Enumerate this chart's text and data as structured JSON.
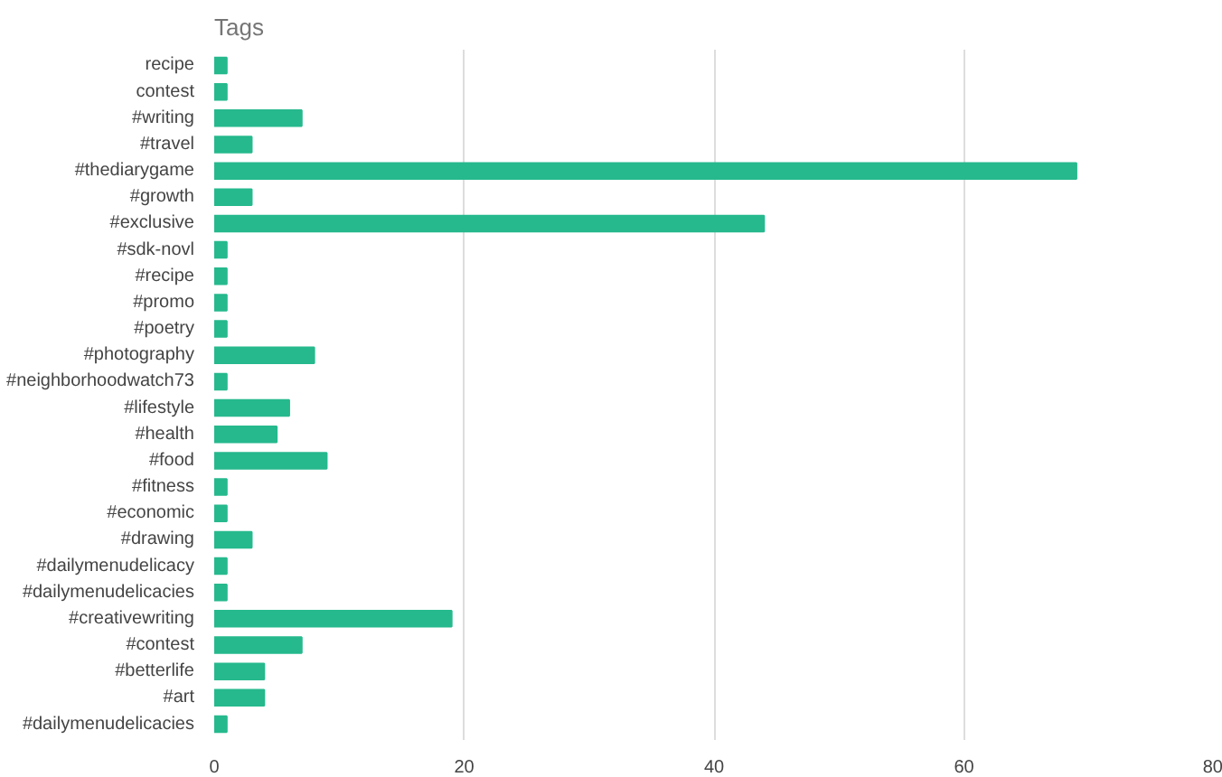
{
  "chart_data": {
    "type": "bar",
    "title": "Tags",
    "orientation": "horizontal",
    "categories": [
      "recipe",
      "contest",
      "#writing",
      "#travel",
      "#thediarygame",
      "#growth",
      "#exclusive",
      "#sdk-novl",
      "#recipe",
      "#promo",
      "#poetry",
      "#photography",
      "#neighborhoodwatch73",
      "#lifestyle",
      "#health",
      "#food",
      "#fitness",
      "#economic",
      "#drawing",
      "#dailymenudelicacy",
      "#dailymenudelicacies",
      "#creativewriting",
      "#contest",
      "#betterlife",
      "#art",
      "#dailymenudelicacies"
    ],
    "series": [
      {
        "color": "#26b98d",
        "values": [
          1,
          1,
          7,
          3,
          69,
          3,
          44,
          1,
          1,
          1,
          1,
          8,
          1,
          6,
          5,
          9,
          1,
          1,
          3,
          1,
          1,
          19,
          7,
          4,
          4,
          1
        ]
      }
    ],
    "xlim": [
      0,
      80
    ],
    "xticks": [
      0,
      20,
      40,
      60,
      80
    ],
    "grid": "x"
  }
}
